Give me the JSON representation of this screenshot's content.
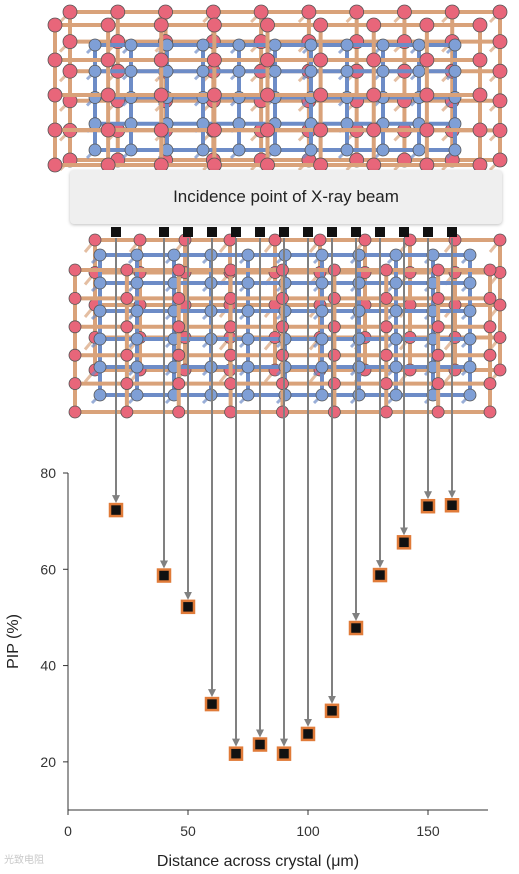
{
  "banner": {
    "label": "Incidence point of X-ray beam"
  },
  "watermark": {
    "text": "光致电阻"
  },
  "colors": {
    "lattice_pink": "#e8667a",
    "lattice_blue": "#7f9fd6",
    "rod_orange": "#d9a27a",
    "rod_blue": "#6d8cc7",
    "marker_fill": "#111111",
    "marker_edge": "#e07b39",
    "arrow": "#808080",
    "axis": "#333333"
  },
  "chart_data": {
    "type": "scatter",
    "xlabel": "Distance across crystal (μm)",
    "ylabel": "PIP (%)",
    "xlim": [
      0,
      175
    ],
    "ylim": [
      10,
      80
    ],
    "xticks": [
      0,
      50,
      100,
      150
    ],
    "yticks": [
      20,
      40,
      60,
      80
    ],
    "grid": false,
    "x": [
      20,
      40,
      50,
      60,
      70,
      80,
      90,
      100,
      110,
      120,
      130,
      140,
      150,
      160
    ],
    "y": [
      72.3,
      58.7,
      52.2,
      32.0,
      21.7,
      23.6,
      21.7,
      25.8,
      30.6,
      47.8,
      58.8,
      65.6,
      73.1,
      73.3
    ]
  }
}
